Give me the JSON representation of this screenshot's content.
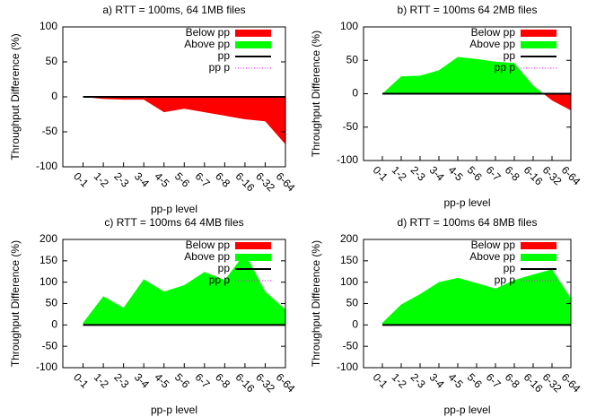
{
  "chart_data": [
    {
      "type": "area",
      "title": "a) RTT = 100ms, 64  1MB files",
      "xlabel": "pp-p level",
      "ylabel": "Throughput Difference (%)",
      "categories": [
        "0-1",
        "1-2",
        "2-3",
        "3-4",
        "4-5",
        "5-6",
        "6-7",
        "6-8",
        "6-16",
        "6-32",
        "6-64"
      ],
      "values": [
        0,
        -3,
        -4,
        -4,
        -22,
        -17,
        -22,
        -27,
        -32,
        -35,
        -68
      ],
      "ylim": [
        -100,
        100
      ],
      "yticks": [
        -100,
        -50,
        0,
        50,
        100
      ],
      "legend": [
        {
          "name": "Below pp",
          "color": "#ff0000"
        },
        {
          "name": "Above pp",
          "color": "#00ff00"
        },
        {
          "name": "pp",
          "color": "#000000"
        },
        {
          "name": "pp p",
          "color": "#ff00ff"
        }
      ]
    },
    {
      "type": "area",
      "title": "b) RTT = 100ms 64 2MB files",
      "xlabel": "pp-p level",
      "ylabel": "Throughput Difference (%)",
      "categories": [
        "0-1",
        "1-2",
        "2-3",
        "3-4",
        "4-5",
        "5-6",
        "6-7",
        "6-8",
        "6-16",
        "6-32",
        "6-64"
      ],
      "values": [
        0,
        26,
        27,
        35,
        55,
        52,
        48,
        46,
        12,
        -10,
        -25
      ],
      "ylim": [
        -100,
        100
      ],
      "yticks": [
        -100,
        -50,
        0,
        50,
        100
      ],
      "legend": [
        {
          "name": "Below pp",
          "color": "#ff0000"
        },
        {
          "name": "Above pp",
          "color": "#00ff00"
        },
        {
          "name": "pp",
          "color": "#000000"
        },
        {
          "name": "pp p",
          "color": "#ff00ff"
        }
      ]
    },
    {
      "type": "area",
      "title": "c) RTT = 100ms 64 4MB files",
      "xlabel": "pp-p level",
      "ylabel": "Throughput Difference (%)",
      "categories": [
        "0-1",
        "1-2",
        "2-3",
        "3-4",
        "4-5",
        "5-6",
        "6-7",
        "6-8",
        "6-16",
        "6-32",
        "6-64"
      ],
      "values": [
        5,
        67,
        40,
        107,
        78,
        93,
        124,
        105,
        168,
        78,
        36
      ],
      "ylim": [
        -100,
        200
      ],
      "yticks": [
        -100,
        -50,
        0,
        50,
        100,
        150,
        200
      ],
      "legend": [
        {
          "name": "Below pp",
          "color": "#ff0000"
        },
        {
          "name": "Above pp",
          "color": "#00ff00"
        },
        {
          "name": "pp",
          "color": "#000000"
        },
        {
          "name": "pp p",
          "color": "#ff00ff"
        }
      ]
    },
    {
      "type": "area",
      "title": "d) RTT = 100ms 64 8MB files",
      "xlabel": "pp-p level",
      "ylabel": "Throughput Difference (%)",
      "categories": [
        "0-1",
        "1-2",
        "2-3",
        "3-4",
        "4-5",
        "5-6",
        "6-7",
        "6-8",
        "6-16",
        "6-32",
        "6-64"
      ],
      "values": [
        5,
        48,
        72,
        100,
        110,
        98,
        85,
        105,
        118,
        130,
        62
      ],
      "ylim": [
        -100,
        200
      ],
      "yticks": [
        -100,
        -50,
        0,
        50,
        100,
        150,
        200
      ],
      "legend": [
        {
          "name": "Below pp",
          "color": "#ff0000"
        },
        {
          "name": "Above pp",
          "color": "#00ff00"
        },
        {
          "name": "pp",
          "color": "#000000"
        },
        {
          "name": "pp p",
          "color": "#ff00ff"
        }
      ]
    }
  ]
}
